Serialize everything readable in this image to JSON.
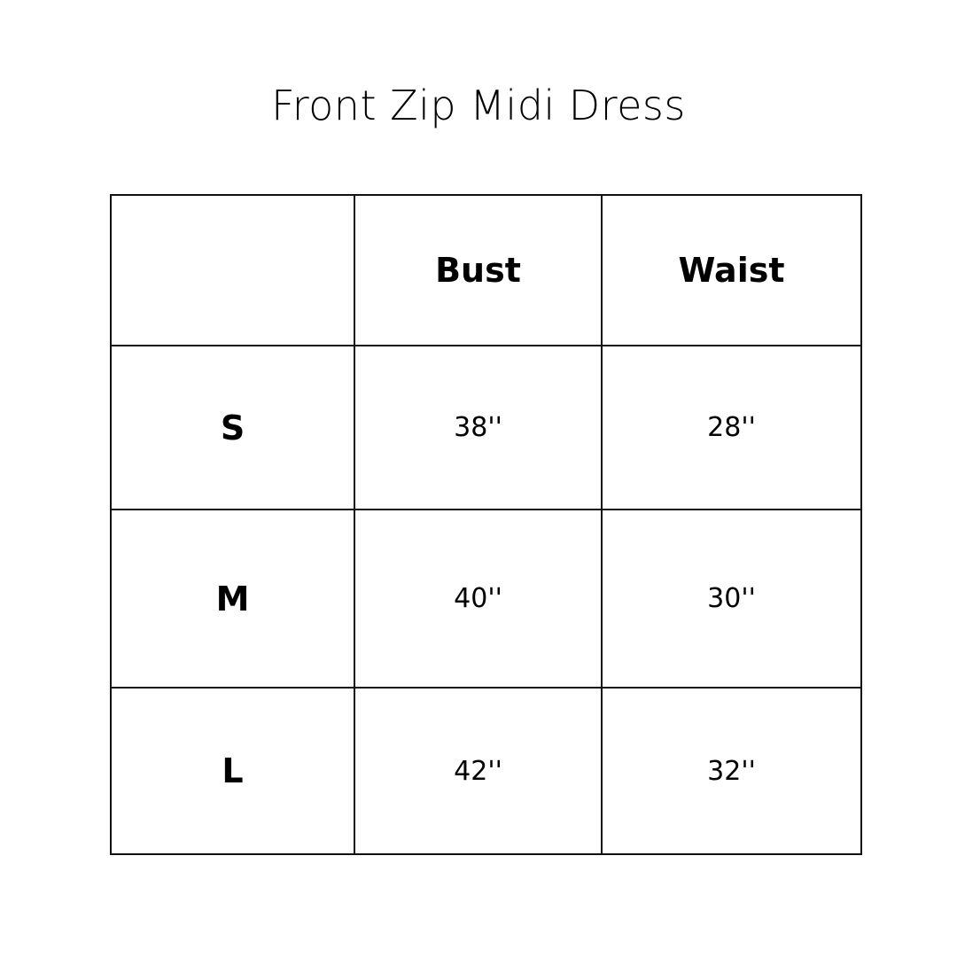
{
  "title": "Front Zip Midi Dress",
  "table": {
    "headers": [
      "",
      "Bust",
      "Waist"
    ],
    "rows": [
      {
        "size": "S",
        "bust": "38''",
        "waist": "28''"
      },
      {
        "size": "M",
        "bust": "40''",
        "waist": "30''"
      },
      {
        "size": "L",
        "bust": "42''",
        "waist": "32''"
      }
    ]
  }
}
